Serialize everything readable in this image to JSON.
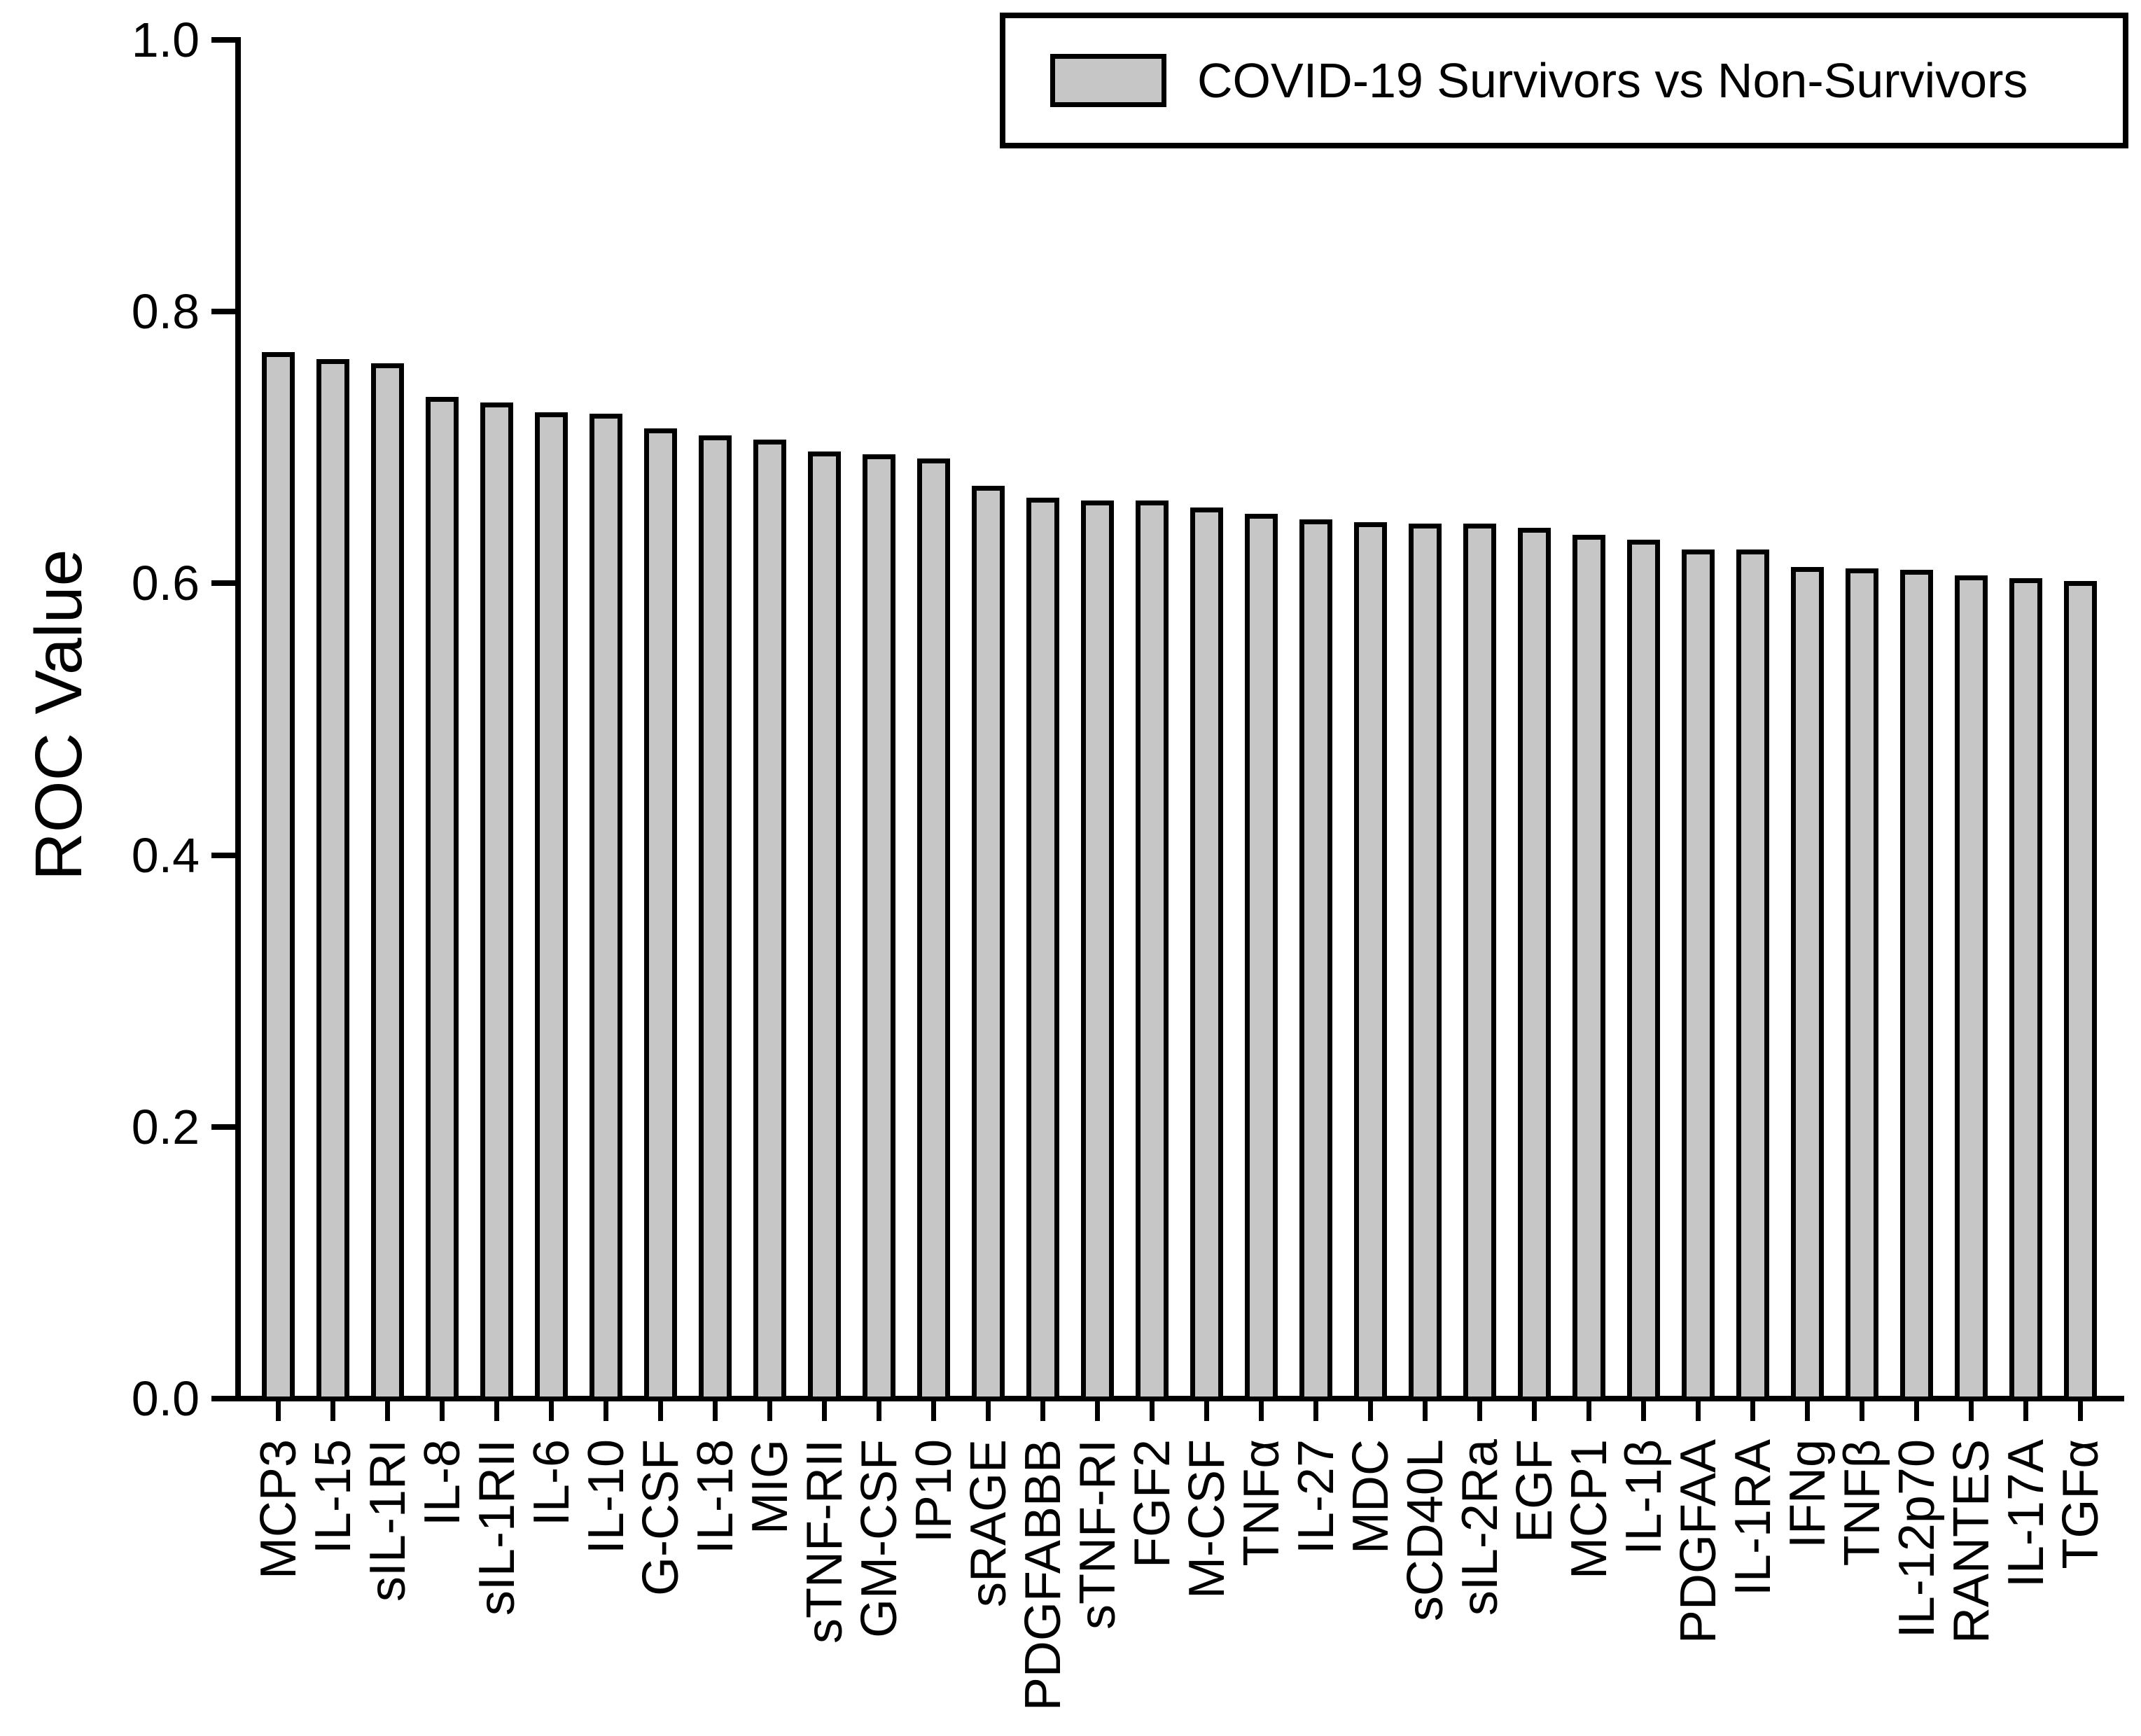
{
  "figure": {
    "ylabel": "ROC Value",
    "legend": {
      "label": "COVID-19 Survivors vs Non-Survivors"
    },
    "colors": {
      "bar_fill": "#c6c6c6",
      "bar_border": "#000000",
      "axis": "#000000",
      "background": "#ffffff",
      "text": "#000000"
    }
  },
  "chart_data": {
    "type": "bar",
    "title": "",
    "xlabel": "",
    "ylabel": "ROC Value",
    "ylim": [
      0.0,
      1.0
    ],
    "yticks": [
      0.0,
      0.2,
      0.4,
      0.6,
      0.8,
      1.0
    ],
    "grid": false,
    "legend_position": "top-right",
    "series_name": "COVID-19 Survivors vs Non-Survivors",
    "categories": [
      "MCP3",
      "IL-15",
      "sIL-1RI",
      "IL-8",
      "sIL-1RII",
      "IL-6",
      "IL-10",
      "G-CSF",
      "IL-18",
      "MIG",
      "sTNF-RII",
      "GM-CSF",
      "IP10",
      "sRAGE",
      "PDGFABBB",
      "sTNF-RI",
      "FGF2",
      "M-CSF",
      "TNFα",
      "IL-27",
      "MDC",
      "sCD40L",
      "sIL-2Ra",
      "EGF",
      "MCP1",
      "IL-1β",
      "PDGFAA",
      "IL-1RA",
      "IFNg",
      "TNFβ",
      "IL-12p70",
      "RANTES",
      "IL-17A",
      "TGFα"
    ],
    "values": [
      0.77,
      0.765,
      0.762,
      0.737,
      0.733,
      0.726,
      0.725,
      0.714,
      0.709,
      0.706,
      0.697,
      0.695,
      0.692,
      0.672,
      0.663,
      0.661,
      0.661,
      0.656,
      0.651,
      0.647,
      0.645,
      0.644,
      0.644,
      0.641,
      0.636,
      0.632,
      0.625,
      0.625,
      0.612,
      0.611,
      0.61,
      0.606,
      0.604,
      0.602
    ]
  }
}
